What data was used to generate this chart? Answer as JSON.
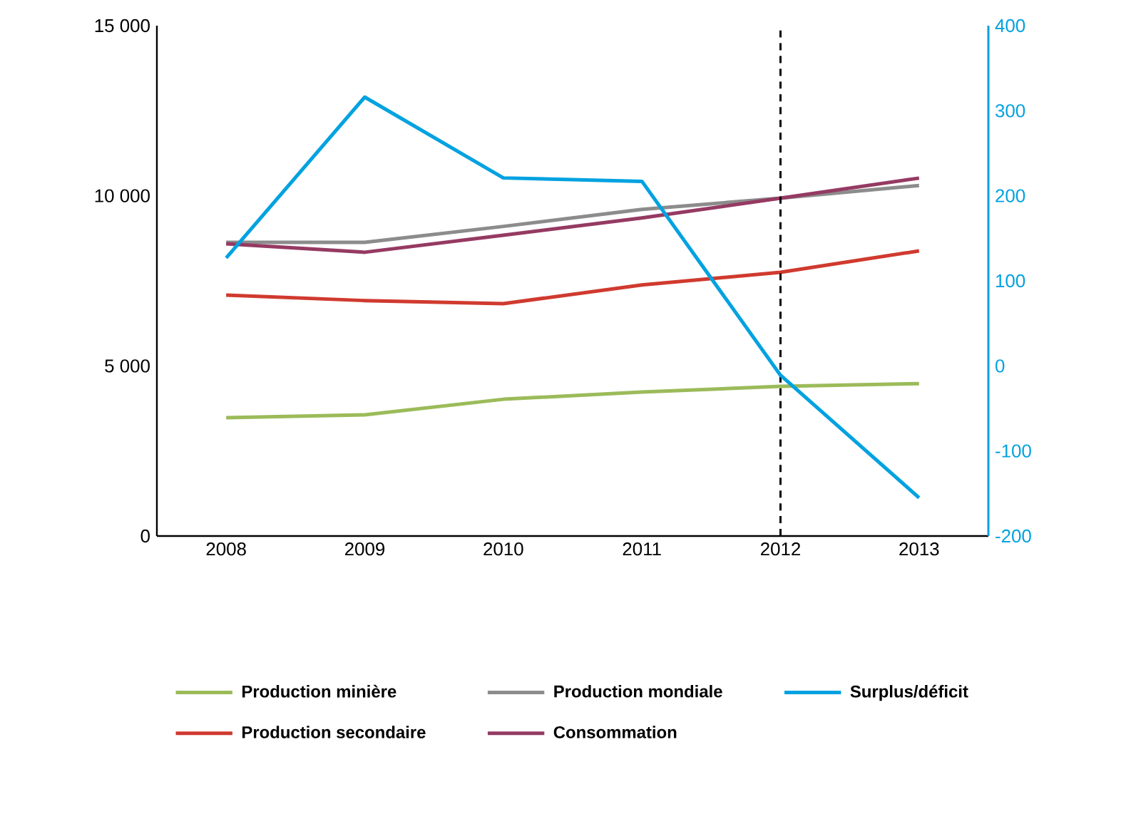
{
  "chart_data": {
    "type": "line",
    "categories": [
      "2008",
      "2009",
      "2010",
      "2011",
      "2012",
      "2013"
    ],
    "series": [
      {
        "name": "Production minière",
        "color": "#9bbb59",
        "values": [
          3480,
          3560,
          4020,
          4230,
          4400,
          4480
        ]
      },
      {
        "name": "Production mondiale",
        "color": "#8c8c8c",
        "values": [
          8630,
          8630,
          9100,
          9600,
          9930,
          10300
        ]
      },
      {
        "name": "Surplus/déficit",
        "color": "#00a2e0",
        "axis": "y2",
        "values": [
          127,
          316,
          221,
          217,
          -11,
          -155
        ]
      },
      {
        "name": "Production secondaire",
        "color": "#d03a2f",
        "values": [
          7080,
          6920,
          6830,
          7380,
          7750,
          8380
        ]
      },
      {
        "name": "Consommation",
        "color": "#953a63",
        "values": [
          8590,
          8340,
          8840,
          9350,
          9930,
          10520
        ]
      }
    ],
    "ylim": [
      0,
      15000
    ],
    "yticks": [
      {
        "value": 0,
        "label": "0"
      },
      {
        "value": 5000,
        "label": "5 000"
      },
      {
        "value": 10000,
        "label": "10 000"
      },
      {
        "value": 15000,
        "label": "15 000"
      }
    ],
    "y2lim": [
      -200,
      400
    ],
    "y2ticks": [
      -200,
      -100,
      0,
      100,
      200,
      300,
      400
    ],
    "ref_lines": [
      {
        "axis": "x",
        "value": "2012",
        "color": "#000000",
        "line_style": "dashed"
      }
    ],
    "legend": "bottom",
    "grid": false,
    "marker": "none",
    "line_style": "solid"
  }
}
